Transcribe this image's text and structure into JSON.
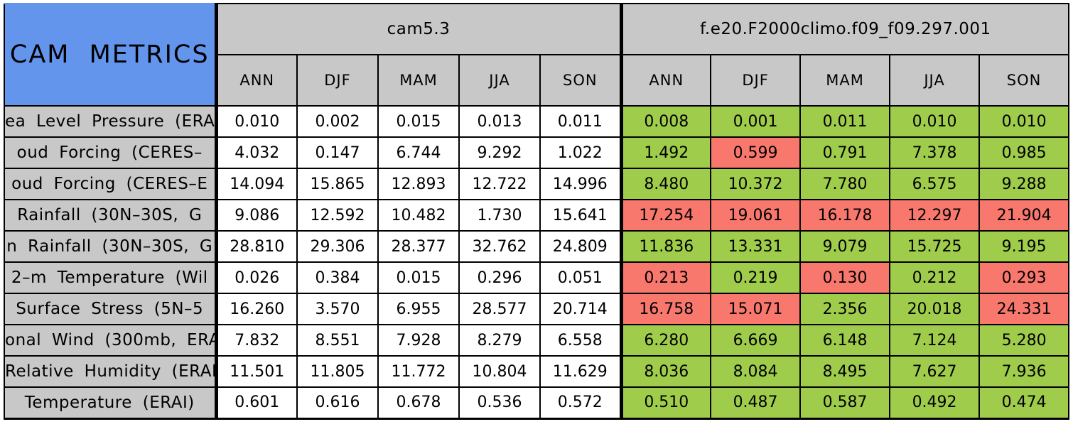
{
  "colors": {
    "title_bg": "#6495ed",
    "header_bg": "#c8c8c8",
    "cell_bg": "#ffffff",
    "better_green": "#a0cc4b",
    "worse_red": "#f9786e",
    "grid": "#000000"
  },
  "chart_data": {
    "type": "table",
    "title": "CAM METRICS",
    "column_groups": [
      "cam5.3",
      "f.e20.F2000climo.f09_f09.297.001"
    ],
    "seasons": [
      "ANN",
      "DJF",
      "MAM",
      "JJA",
      "SON"
    ],
    "rows": [
      {
        "label": "ea Level Pressure (ERA",
        "cam5_3": [
          "0.010",
          "0.002",
          "0.015",
          "0.013",
          "0.011"
        ],
        "f_e20": [
          "0.008",
          "0.001",
          "0.011",
          "0.010",
          "0.010"
        ],
        "f_e20_status": [
          "better",
          "better",
          "better",
          "better",
          "better"
        ]
      },
      {
        "label": "oud Forcing (CERES–",
        "cam5_3": [
          "4.032",
          "0.147",
          "6.744",
          "9.292",
          "1.022"
        ],
        "f_e20": [
          "1.492",
          "0.599",
          "0.791",
          "7.378",
          "0.985"
        ],
        "f_e20_status": [
          "better",
          "worse",
          "better",
          "better",
          "better"
        ]
      },
      {
        "label": "oud Forcing (CERES–E",
        "cam5_3": [
          "14.094",
          "15.865",
          "12.893",
          "12.722",
          "14.996"
        ],
        "f_e20": [
          "8.480",
          "10.372",
          "7.780",
          "6.575",
          "9.288"
        ],
        "f_e20_status": [
          "better",
          "better",
          "better",
          "better",
          "better"
        ]
      },
      {
        "label": "Rainfall (30N–30S, G",
        "cam5_3": [
          "9.086",
          "12.592",
          "10.482",
          "1.730",
          "15.641"
        ],
        "f_e20": [
          "17.254",
          "19.061",
          "16.178",
          "12.297",
          "21.904"
        ],
        "f_e20_status": [
          "worse",
          "worse",
          "worse",
          "worse",
          "worse"
        ]
      },
      {
        "label": "n Rainfall (30N–30S, G",
        "cam5_3": [
          "28.810",
          "29.306",
          "28.377",
          "32.762",
          "24.809"
        ],
        "f_e20": [
          "11.836",
          "13.331",
          "9.079",
          "15.725",
          "9.195"
        ],
        "f_e20_status": [
          "better",
          "better",
          "better",
          "better",
          "better"
        ]
      },
      {
        "label": "2–m Temperature (Wil",
        "cam5_3": [
          "0.026",
          "0.384",
          "0.015",
          "0.296",
          "0.051"
        ],
        "f_e20": [
          "0.213",
          "0.219",
          "0.130",
          "0.212",
          "0.293"
        ],
        "f_e20_status": [
          "worse",
          "better",
          "worse",
          "better",
          "worse"
        ]
      },
      {
        "label": "Surface Stress (5N–5",
        "cam5_3": [
          "16.260",
          "3.570",
          "6.955",
          "28.577",
          "20.714"
        ],
        "f_e20": [
          "16.758",
          "15.071",
          "2.356",
          "20.018",
          "24.331"
        ],
        "f_e20_status": [
          "worse",
          "worse",
          "better",
          "better",
          "worse"
        ]
      },
      {
        "label": "onal Wind (300mb, ERA",
        "cam5_3": [
          "7.832",
          "8.551",
          "7.928",
          "8.279",
          "6.558"
        ],
        "f_e20": [
          "6.280",
          "6.669",
          "6.148",
          "7.124",
          "5.280"
        ],
        "f_e20_status": [
          "better",
          "better",
          "better",
          "better",
          "better"
        ]
      },
      {
        "label": "Relative Humidity (ERAI",
        "cam5_3": [
          "11.501",
          "11.805",
          "11.772",
          "10.804",
          "11.629"
        ],
        "f_e20": [
          "8.036",
          "8.084",
          "8.495",
          "7.627",
          "7.936"
        ],
        "f_e20_status": [
          "better",
          "better",
          "better",
          "better",
          "better"
        ]
      },
      {
        "label": "Temperature (ERAI)",
        "cam5_3": [
          "0.601",
          "0.616",
          "0.678",
          "0.536",
          "0.572"
        ],
        "f_e20": [
          "0.510",
          "0.487",
          "0.587",
          "0.492",
          "0.474"
        ],
        "f_e20_status": [
          "better",
          "better",
          "better",
          "better",
          "better"
        ]
      }
    ]
  }
}
